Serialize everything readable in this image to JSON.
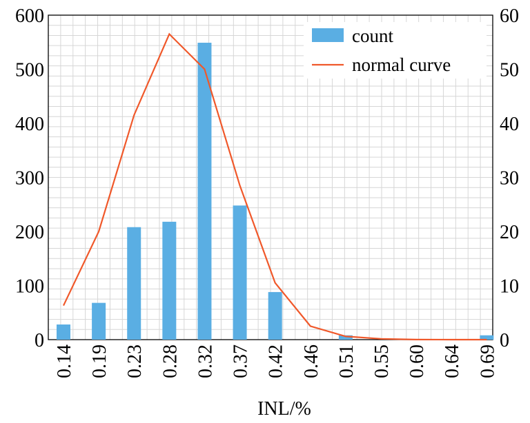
{
  "chart_data": {
    "type": "bar",
    "xlabel": "INL/%",
    "categories": [
      "0.14",
      "0.19",
      "0.23",
      "0.28",
      "0.32",
      "0.37",
      "0.42",
      "0.46",
      "0.51",
      "0.55",
      "0.60",
      "0.64",
      "0.69"
    ],
    "series": [
      {
        "name": "count",
        "type": "bar",
        "axis": "left",
        "color": "#5aaee3",
        "values": [
          28,
          68,
          208,
          218,
          549,
          248,
          88,
          0,
          8,
          0,
          0,
          0,
          8
        ]
      },
      {
        "name": "normal curve",
        "type": "line",
        "axis": "right",
        "color": "#f0582a",
        "values": [
          6.3,
          20,
          41.5,
          56.5,
          50,
          28.5,
          10.5,
          2.5,
          0.6,
          0.15,
          0.02,
          0,
          0
        ]
      }
    ],
    "y_left": {
      "ylim": [
        0,
        600
      ],
      "ticks": [
        "0",
        "100",
        "200",
        "300",
        "400",
        "500",
        "600"
      ]
    },
    "y_right": {
      "ylim": [
        0,
        60
      ],
      "ticks": [
        "0",
        "10",
        "20",
        "30",
        "40",
        "50",
        "60"
      ]
    },
    "grid": true,
    "legend_position": "top-right"
  }
}
